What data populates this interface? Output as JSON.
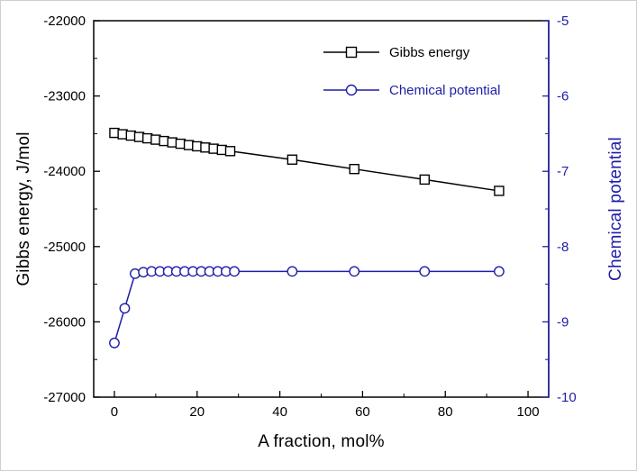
{
  "figure": {
    "background": "#ffffff",
    "border_color": "#d0d0d0"
  },
  "chart_data": {
    "type": "line",
    "title": "",
    "xlabel": "A fraction, mol%",
    "ylabel_left": "Gibbs energy, J/mol",
    "ylabel_right": "Chemical potential",
    "xlim": [
      -5,
      105
    ],
    "x_ticks": [
      0,
      20,
      40,
      60,
      80,
      100
    ],
    "x_minor_ticks": [
      10,
      30,
      50,
      70,
      90
    ],
    "ylim_left": [
      -27000,
      -22000
    ],
    "y_ticks_left": [
      -27000,
      -26000,
      -25000,
      -24000,
      -23000,
      -22000
    ],
    "y_minor_ticks_left": [
      -26500,
      -25500,
      -24500,
      -23500,
      -22500
    ],
    "ylim_right": [
      -10,
      -5
    ],
    "y_ticks_right": [
      -10,
      -9,
      -8,
      -7,
      -6,
      -5
    ],
    "y_minor_ticks_right": [
      -9.5,
      -8.5,
      -7.5,
      -6.5,
      -5.5
    ],
    "grid": false,
    "legend_position": "upper-center",
    "axis_color_left": "#000000",
    "axis_color_right": "#1e1ea8",
    "series": [
      {
        "name": "Gibbs energy",
        "axis": "left",
        "color": "#000000",
        "marker": "square",
        "x": [
          0,
          2,
          4,
          6,
          8,
          10,
          12,
          14,
          16,
          18,
          20,
          22,
          24,
          26,
          28,
          43,
          58,
          75,
          93
        ],
        "values": [
          -23490,
          -23508,
          -23526,
          -23544,
          -23562,
          -23580,
          -23598,
          -23616,
          -23634,
          -23652,
          -23668,
          -23684,
          -23700,
          -23716,
          -23732,
          -23845,
          -23970,
          -24110,
          -24260
        ]
      },
      {
        "name": "Chemical potential",
        "axis": "right",
        "color": "#1e1ea8",
        "marker": "circle",
        "x": [
          0,
          2.5,
          5,
          7,
          9,
          11,
          13,
          15,
          17,
          19,
          21,
          23,
          25,
          27,
          29,
          43,
          58,
          75,
          93
        ],
        "values": [
          -9.28,
          -8.82,
          -8.36,
          -8.34,
          -8.33,
          -8.33,
          -8.33,
          -8.33,
          -8.33,
          -8.33,
          -8.33,
          -8.33,
          -8.33,
          -8.33,
          -8.33,
          -8.33,
          -8.33,
          -8.33,
          -8.33
        ]
      }
    ]
  }
}
